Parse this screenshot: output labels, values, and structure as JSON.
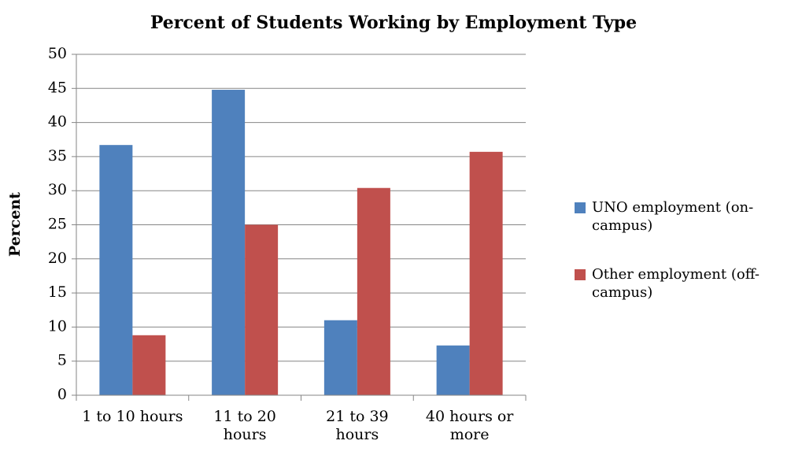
{
  "chart_data": {
    "type": "bar",
    "title": "Percent of Students Working by Employment Type",
    "y_label": "Percent",
    "categories": [
      "1 to 10 hours",
      "11 to 20 hours",
      "21 to 39 hours",
      "40 hours or more"
    ],
    "series": [
      {
        "name": "UNO employment (on-campus)",
        "color": "#4f81bd",
        "values": [
          36.7,
          44.8,
          11.0,
          7.3
        ]
      },
      {
        "name": "Other employment (off-campus)",
        "color": "#c0504d",
        "values": [
          8.8,
          25.0,
          30.4,
          35.7
        ]
      }
    ],
    "ylim": [
      0,
      50
    ],
    "yticks": [
      0,
      5,
      10,
      15,
      20,
      25,
      30,
      35,
      40,
      45,
      50
    ],
    "grid": true,
    "legend": "right"
  }
}
